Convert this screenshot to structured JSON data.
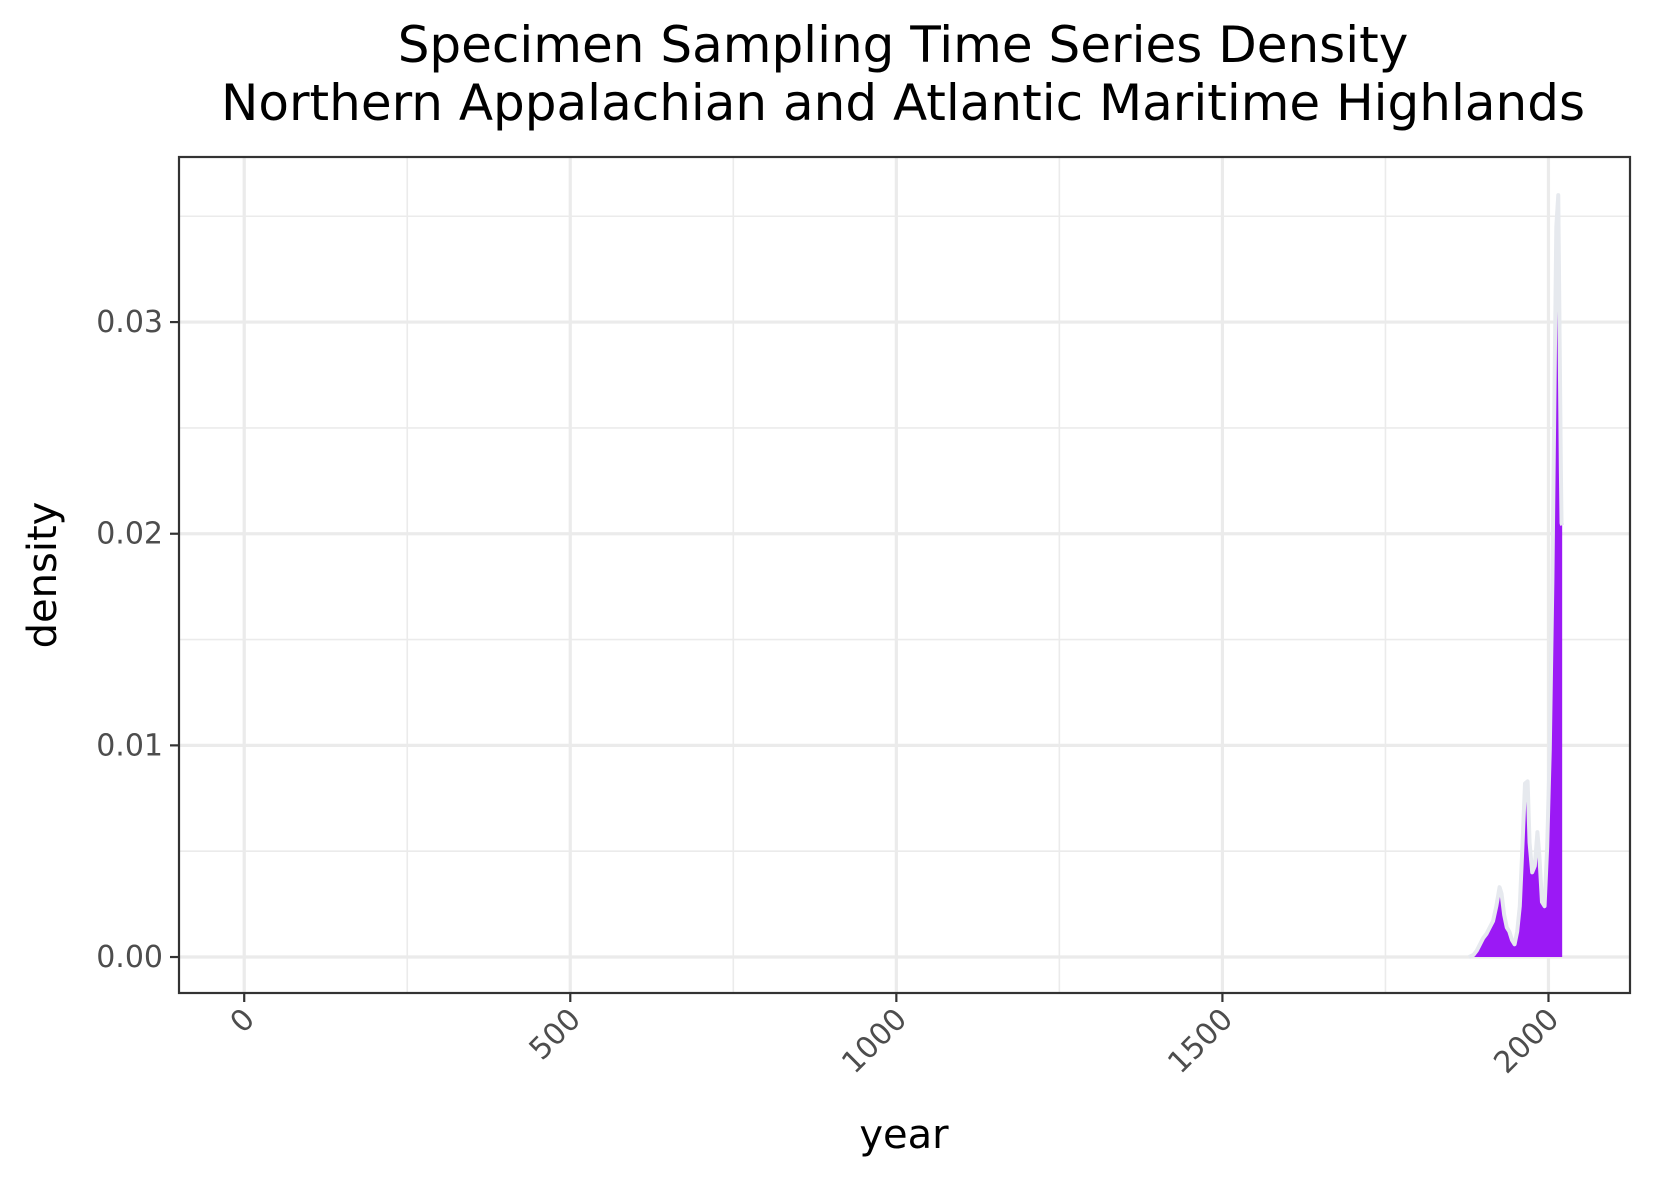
{
  "chart_data": {
    "type": "area",
    "title": "Specimen Sampling Time Series Density",
    "subtitle": "Northern Appalachian and Atlantic Maritime Highlands",
    "xlabel": "year",
    "ylabel": "density",
    "xlim": [
      -100,
      2125
    ],
    "ylim": [
      -0.0017,
      0.0378
    ],
    "x_ticks": [
      0,
      500,
      1000,
      1500,
      2000
    ],
    "x_tick_labels": [
      "0",
      "500",
      "1000",
      "1500",
      "2000"
    ],
    "y_ticks": [
      0.0,
      0.01,
      0.02,
      0.03
    ],
    "y_tick_labels": [
      "0.00",
      "0.01",
      "0.02",
      "0.03"
    ],
    "grid": true,
    "legend": "none",
    "fill_color": "#9b19f5",
    "outline_color": "#e6e9ee",
    "series": [
      {
        "x": [
          1878,
          1885,
          1890,
          1895,
          1900,
          1905,
          1910,
          1915,
          1920,
          1925,
          1928,
          1932,
          1936,
          1940,
          1944,
          1948,
          1952,
          1956,
          1960,
          1964,
          1968,
          1971,
          1975,
          1979,
          1983,
          1986,
          1990,
          1994,
          1998,
          2002,
          2006,
          2009,
          2012,
          2015,
          2017,
          2019,
          2020,
          2021
        ],
        "values": [
          0.0,
          0.0001,
          0.0003,
          0.0006,
          0.0009,
          0.0011,
          0.0014,
          0.0017,
          0.0024,
          0.0033,
          0.003,
          0.002,
          0.0014,
          0.0012,
          0.0008,
          0.0006,
          0.0012,
          0.0024,
          0.0052,
          0.0082,
          0.0083,
          0.0054,
          0.004,
          0.0043,
          0.0059,
          0.0048,
          0.0026,
          0.0024,
          0.0052,
          0.0098,
          0.0178,
          0.0262,
          0.0345,
          0.036,
          0.0295,
          0.023,
          0.0205,
          0.0204
        ]
      }
    ]
  }
}
